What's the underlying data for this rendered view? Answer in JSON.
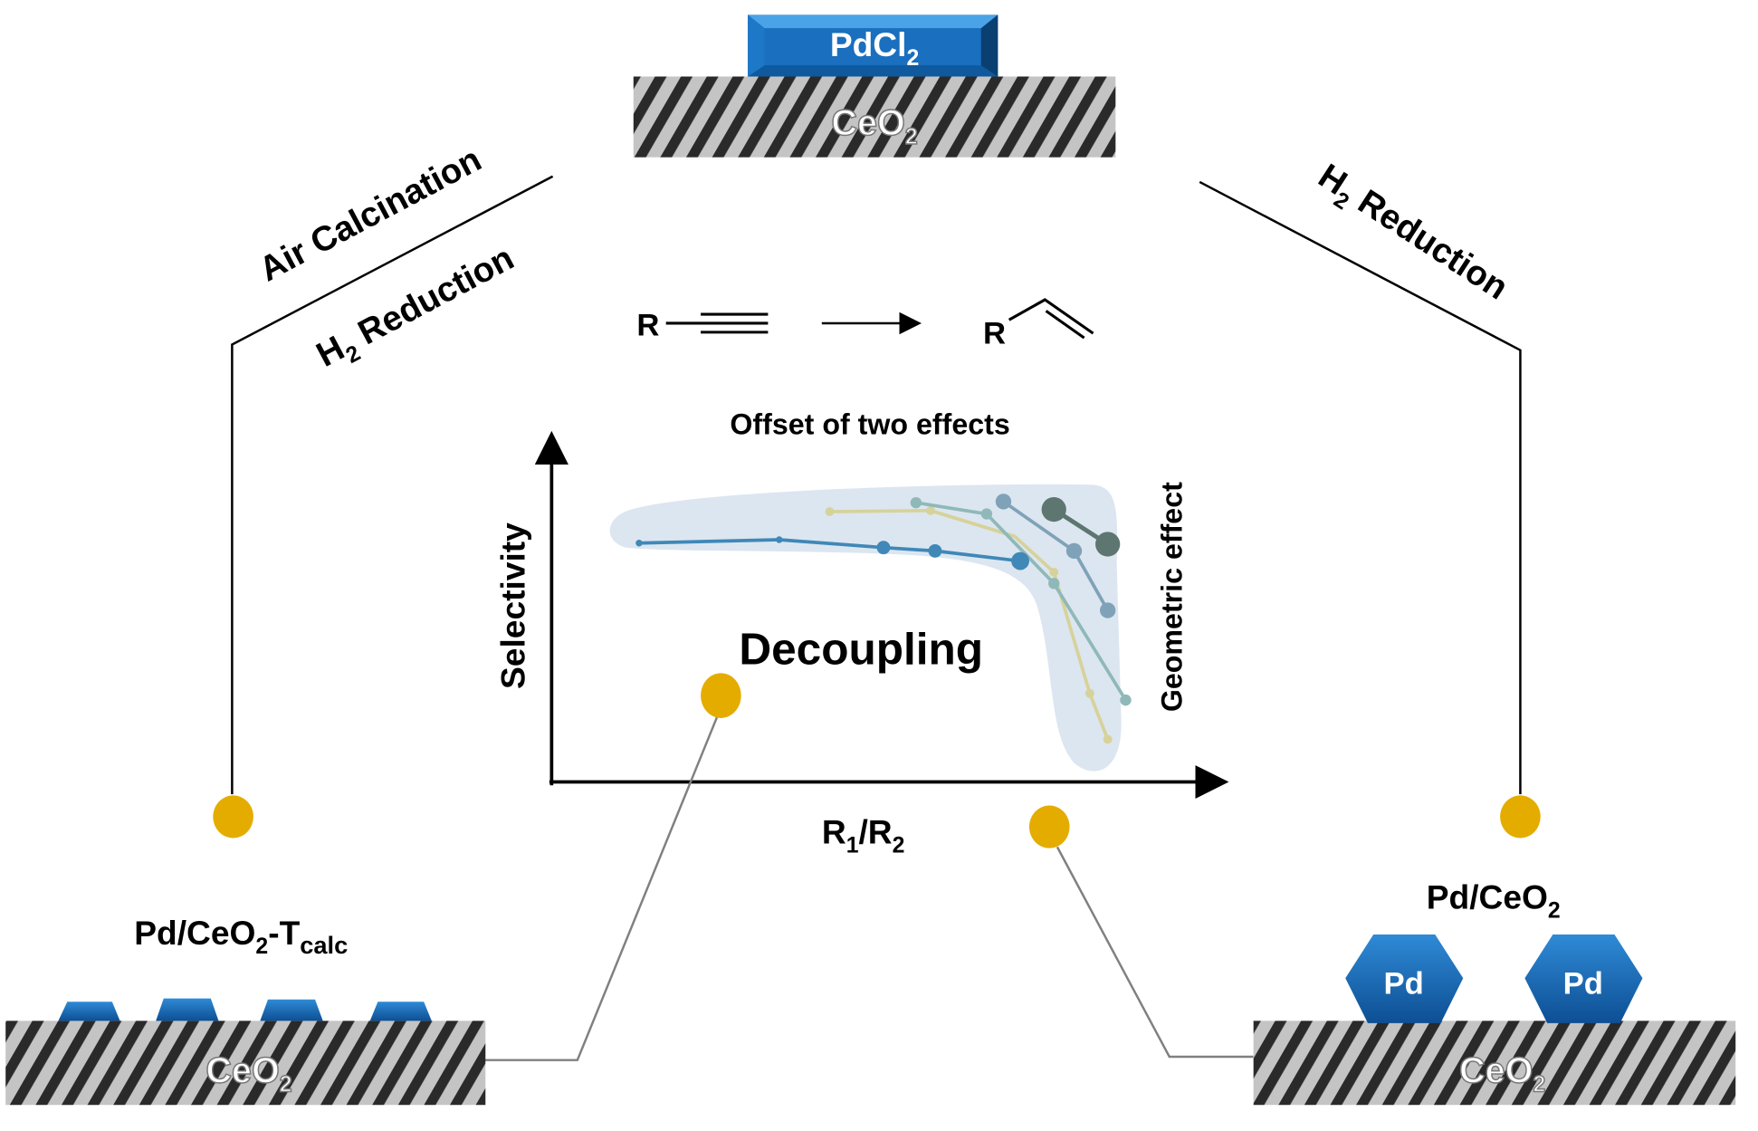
{
  "top": {
    "precursor": "PdCl",
    "precursor_sub": "2",
    "support": "CeO",
    "support_sub": "2"
  },
  "left_path": {
    "step1": "Air Calcination",
    "step2_main": "H",
    "step2_sub": "2",
    "step2_rest": " Reduction"
  },
  "right_path": {
    "step_main": "H",
    "step_sub": "2",
    "step_rest": " Reduction"
  },
  "reaction": {
    "reactant_group": "R",
    "product_group": "R"
  },
  "plot": {
    "title": "Offset of two effects",
    "y_label": "Selectivity",
    "x_label_main": "R",
    "x_label_sub1": "1",
    "x_label_mid": "/R",
    "x_label_sub2": "2",
    "right_label": "Geometric effect",
    "center_label": "Decoupling"
  },
  "left_catalyst": {
    "name_main": "Pd/CeO",
    "name_sub": "2",
    "name_mid": "-T",
    "name_sub2": "calc",
    "support": "CeO",
    "support_sub": "2"
  },
  "right_catalyst": {
    "name_main": "Pd/CeO",
    "name_sub": "2",
    "particle": "Pd",
    "support": "CeO",
    "support_sub": "2"
  },
  "colors": {
    "connector_dot": "#E5AC00",
    "pd_blue": "#1565b0",
    "region": "#dce6f0",
    "curve_blue": "#3f88b8",
    "curve_yellow": "#d6d29a",
    "curve_teal": "#8fb9b8",
    "curve_slate": "#7fa2b8",
    "curve_dark": "#5e7670"
  }
}
